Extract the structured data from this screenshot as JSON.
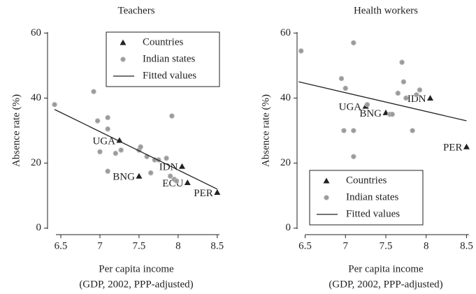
{
  "chart_data": [
    {
      "type": "scatter",
      "title": "Teachers",
      "x_label": "Per capita income",
      "x_label_note": "(GDP, 2002, PPP-adjusted)",
      "y_label": "Absence rate (%)",
      "xlim": [
        6.33,
        8.6
      ],
      "ylim": [
        -2,
        62
      ],
      "xticks": [
        6.5,
        7,
        7.5,
        8,
        8.5
      ],
      "yticks": [
        0,
        20,
        40,
        60
      ],
      "legend": "upper right",
      "series": [
        {
          "name": "Countries",
          "marker": "triangle",
          "color": "#222222",
          "x": [
            7.25,
            7.5,
            8.05,
            8.12,
            8.5
          ],
          "values": [
            27,
            16,
            19,
            14,
            11
          ],
          "labels": [
            "UGA",
            "BNG",
            "IDN",
            "ECU",
            "PER"
          ]
        },
        {
          "name": "Indian states",
          "marker": "dot",
          "color": "#9a9a9a",
          "x": [
            6.42,
            6.92,
            6.97,
            7.0,
            7.1,
            7.1,
            7.1,
            7.2,
            7.27,
            7.5,
            7.52,
            7.6,
            7.65,
            7.7,
            7.75,
            7.85,
            7.92,
            7.9,
            7.95,
            7.98
          ],
          "values": [
            38,
            42,
            33,
            23.5,
            34,
            30.5,
            17.5,
            23,
            24,
            24,
            25,
            22,
            17,
            21,
            21,
            21.5,
            34.5,
            16,
            15,
            14.5
          ]
        },
        {
          "name": "Fitted values",
          "marker": "line",
          "color": "#222222",
          "x": [
            6.42,
            8.5
          ],
          "values": [
            36.5,
            12
          ]
        }
      ]
    },
    {
      "type": "scatter",
      "title": "Health workers",
      "x_label": "Per capita income",
      "x_label_note": "(GDP, 2002, PPP-adjusted)",
      "y_label": "Absence rate (%)",
      "xlim": [
        6.4,
        8.6
      ],
      "ylim": [
        -2,
        62
      ],
      "xticks": [
        6.5,
        7,
        7.5,
        8,
        8.5
      ],
      "yticks": [
        0,
        20,
        40,
        60
      ],
      "legend": "lower left",
      "series": [
        {
          "name": "Countries",
          "marker": "triangle",
          "color": "#222222",
          "x": [
            7.25,
            7.5,
            8.05,
            8.5
          ],
          "values": [
            37.5,
            35.5,
            40,
            25
          ],
          "labels": [
            "UGA",
            "BNG",
            "IDN",
            "PER"
          ]
        },
        {
          "name": "Indian states",
          "marker": "dot",
          "color": "#9a9a9a",
          "x": [
            6.45,
            6.95,
            7.0,
            6.98,
            7.1,
            7.1,
            7.1,
            7.27,
            7.55,
            7.58,
            7.65,
            7.7,
            7.72,
            7.75,
            7.83,
            7.88,
            7.92
          ],
          "values": [
            54.5,
            46,
            43,
            30,
            57,
            30,
            22,
            38,
            35,
            35,
            41.5,
            51,
            45,
            40,
            30,
            41,
            42.5
          ]
        },
        {
          "name": "Fitted values",
          "marker": "line",
          "color": "#222222",
          "x": [
            6.42,
            8.5
          ],
          "values": [
            45,
            33
          ]
        }
      ]
    }
  ]
}
